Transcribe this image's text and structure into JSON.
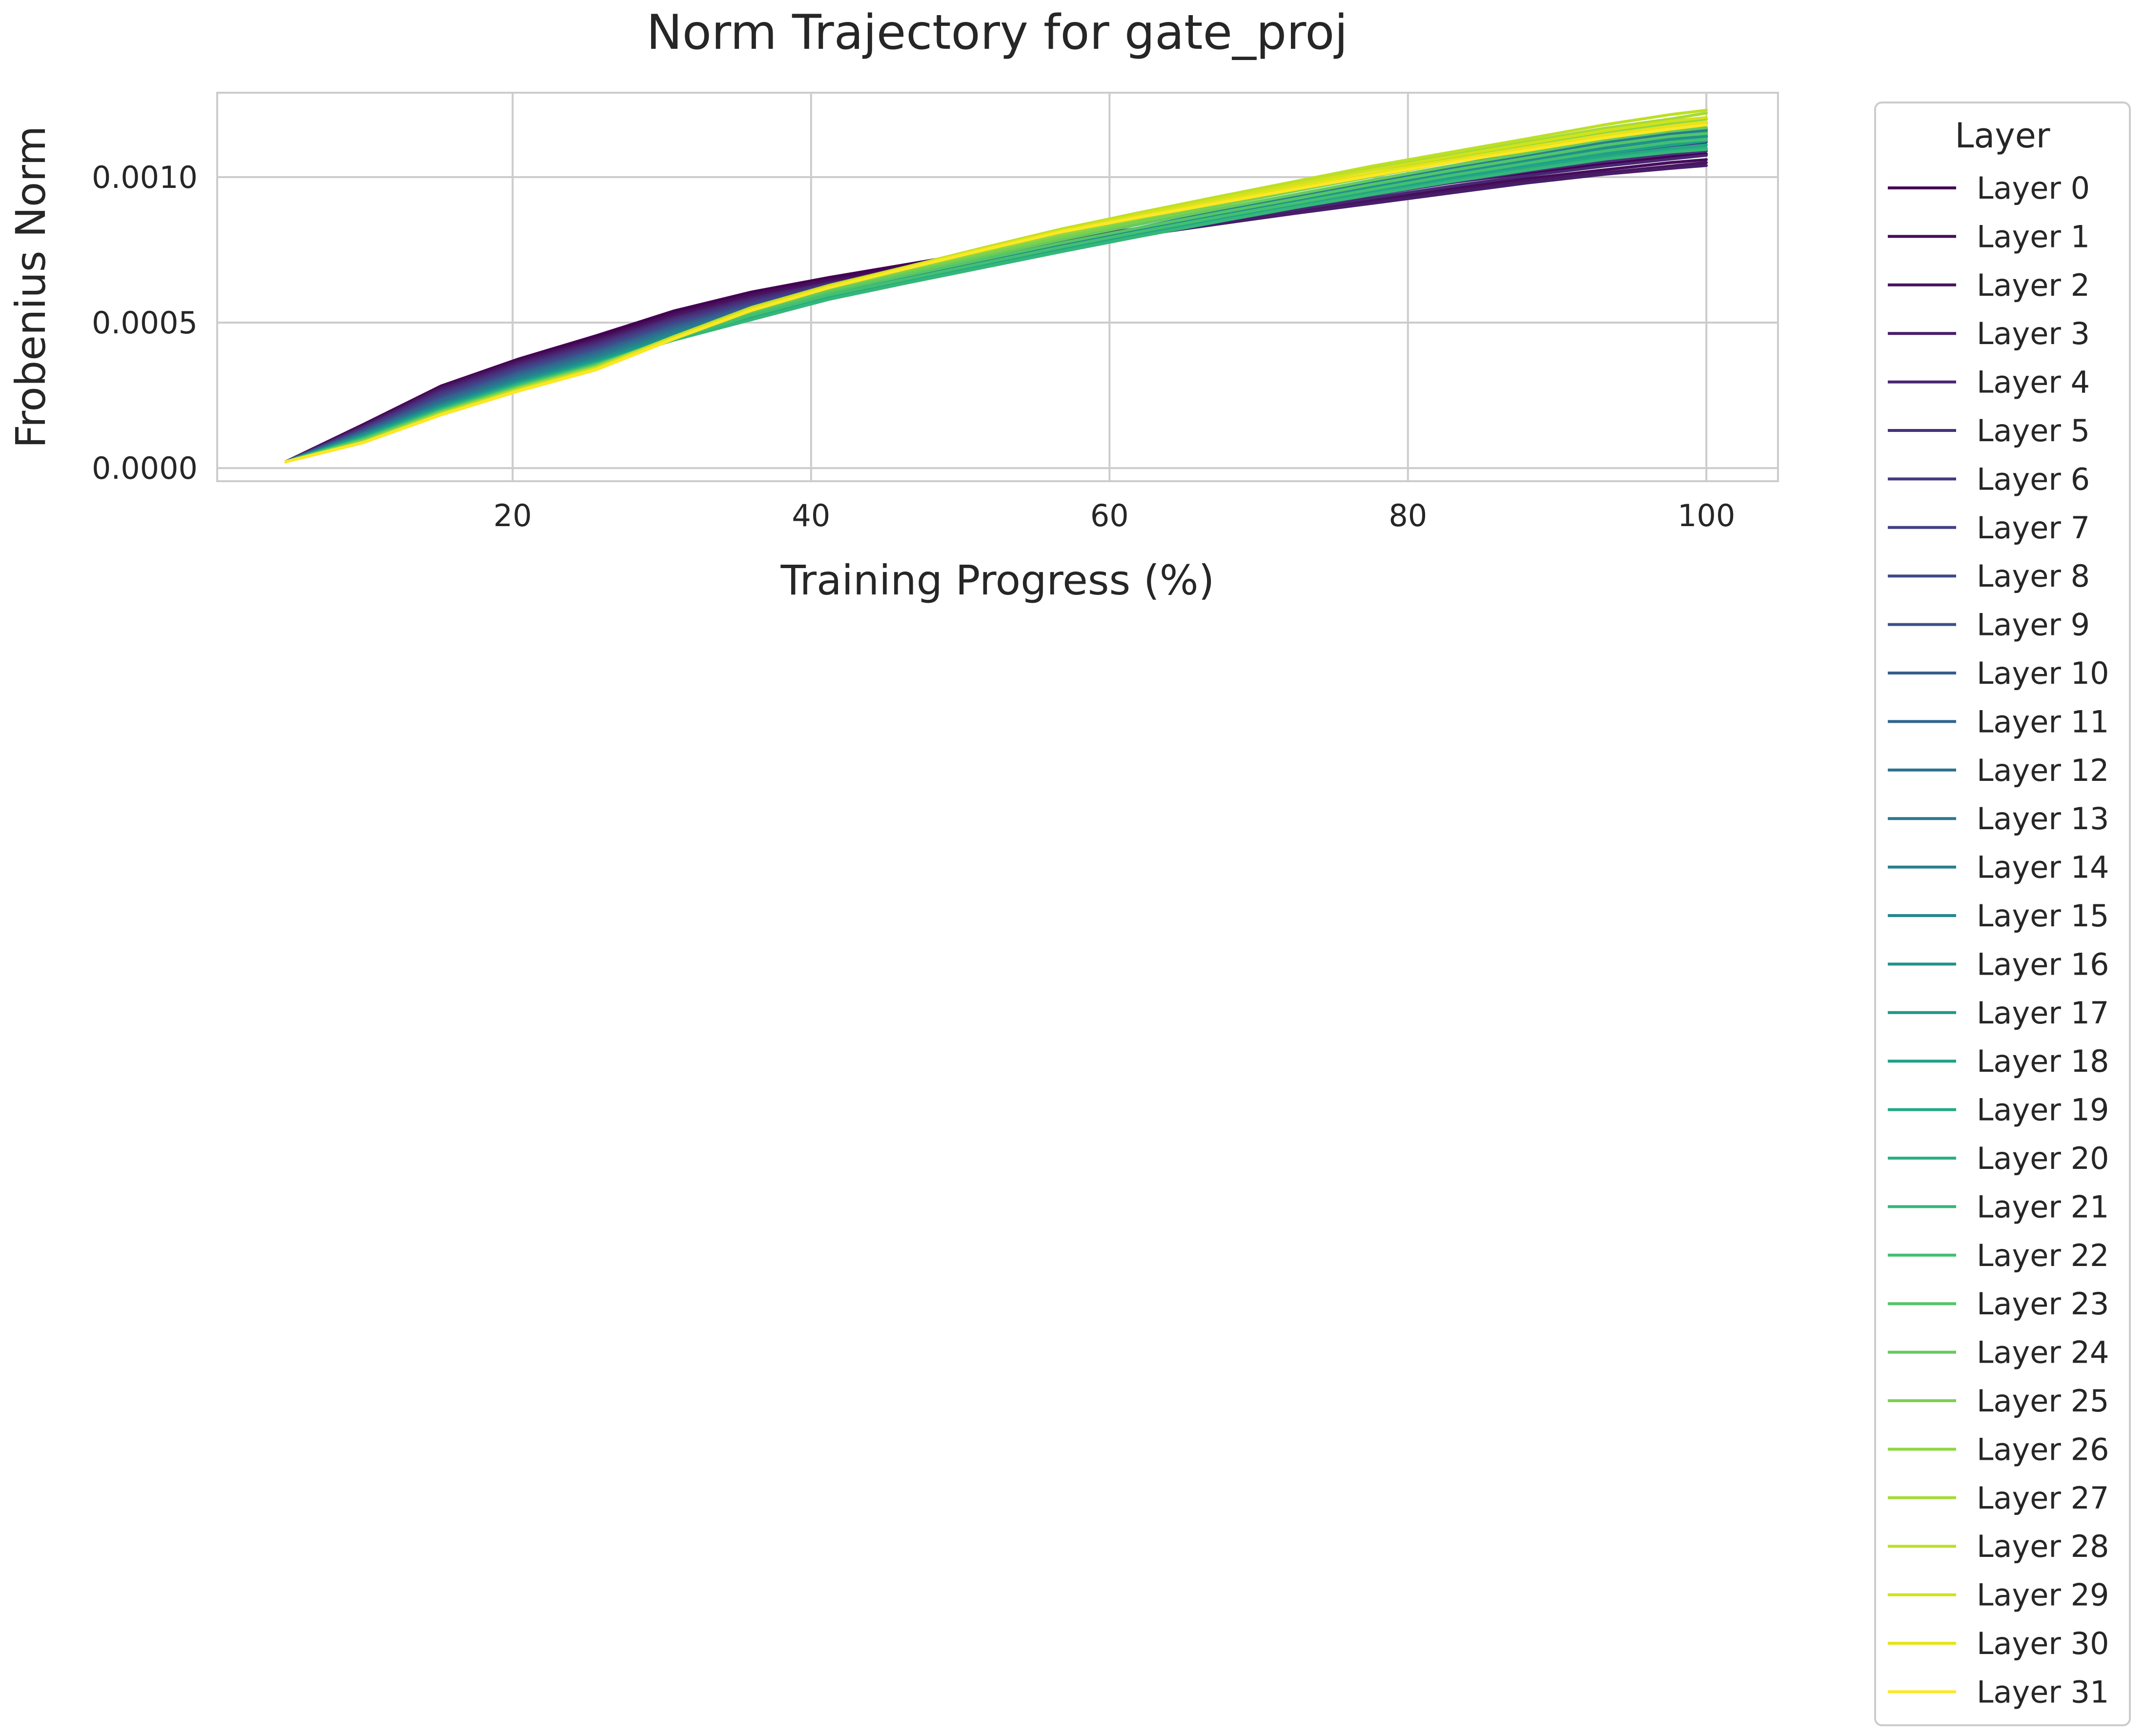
{
  "chart_data": {
    "type": "line",
    "title": "Norm Trajectory for gate_proj",
    "xlabel": "Training Progress (%)",
    "ylabel": "Frobenius Norm",
    "xlim": [
      0.2,
      104.8
    ],
    "ylim": [
      -4.5e-05,
      0.00129
    ],
    "xticks": [
      20,
      40,
      60,
      80,
      100
    ],
    "xtick_labels": [
      "20",
      "40",
      "60",
      "80",
      "100"
    ],
    "yticks": [
      0,
      0.0005,
      0.001
    ],
    "ytick_labels": [
      "0.0000",
      "0.0005",
      "0.0010"
    ],
    "grid": true,
    "legend_title": "Layer",
    "legend_position": "outside right",
    "x": [
      4.8,
      10.0,
      15.2,
      20.4,
      25.6,
      30.8,
      36.0,
      41.2,
      46.4,
      51.6,
      56.8,
      62.0,
      67.2,
      72.4,
      77.6,
      82.8,
      88.0,
      93.2,
      97.6,
      100.0
    ],
    "series": [
      {
        "name": "Layer 0",
        "color": "#440154",
        "values": [
          2.2e-05,
          0.00015,
          0.000282,
          0.000375,
          0.000455,
          0.00054,
          0.000605,
          0.000655,
          0.0007,
          0.000745,
          0.000785,
          0.000825,
          0.000865,
          0.000905,
          0.000945,
          0.00098,
          0.001015,
          0.001045,
          0.00107,
          0.00108
        ]
      },
      {
        "name": "Layer 1",
        "color": "#450c5a",
        "values": [
          2.2e-05,
          0.000148,
          0.00028,
          0.00037,
          0.000445,
          0.00053,
          0.000595,
          0.000645,
          0.000692,
          0.000735,
          0.000775,
          0.000812,
          0.000848,
          0.000885,
          0.000922,
          0.00096,
          0.000995,
          0.001025,
          0.00105,
          0.00106
        ]
      },
      {
        "name": "Layer 2",
        "color": "#47155f",
        "values": [
          2.2e-05,
          0.000145,
          0.000275,
          0.000365,
          0.00044,
          0.000525,
          0.00059,
          0.00064,
          0.000685,
          0.00073,
          0.00077,
          0.000805,
          0.000842,
          0.000878,
          0.000915,
          0.00095,
          0.000985,
          0.001015,
          0.001038,
          0.00105
        ]
      },
      {
        "name": "Layer 3",
        "color": "#481e6b",
        "values": [
          2.2e-05,
          0.000142,
          0.00027,
          0.00036,
          0.000435,
          0.000518,
          0.000585,
          0.000635,
          0.00068,
          0.000725,
          0.000765,
          0.0008,
          0.000838,
          0.000875,
          0.00091,
          0.000945,
          0.00098,
          0.00101,
          0.00103,
          0.00104
        ]
      },
      {
        "name": "Layer 4",
        "color": "#482773",
        "values": [
          2.2e-05,
          0.00014,
          0.000265,
          0.000355,
          0.00043,
          0.000515,
          0.00058,
          0.000635,
          0.00068,
          0.000725,
          0.000768,
          0.000808,
          0.000848,
          0.000888,
          0.000928,
          0.000968,
          0.001005,
          0.001038,
          0.001062,
          0.001075
        ]
      },
      {
        "name": "Layer 5",
        "color": "#47307b",
        "values": [
          2.2e-05,
          0.000138,
          0.00026,
          0.00035,
          0.000425,
          0.00051,
          0.000575,
          0.000632,
          0.000678,
          0.000724,
          0.000768,
          0.00081,
          0.000852,
          0.000895,
          0.000938,
          0.00098,
          0.00102,
          0.001055,
          0.00108,
          0.00109
        ]
      },
      {
        "name": "Layer 6",
        "color": "#453882",
        "values": [
          2.2e-05,
          0.000135,
          0.000255,
          0.000345,
          0.00042,
          0.000505,
          0.00057,
          0.000628,
          0.000676,
          0.000722,
          0.000768,
          0.000812,
          0.000856,
          0.0009,
          0.000945,
          0.000988,
          0.00103,
          0.001068,
          0.001095,
          0.00111
        ]
      },
      {
        "name": "Layer 7",
        "color": "#424086",
        "values": [
          2.2e-05,
          0.000132,
          0.00025,
          0.00034,
          0.000415,
          0.0005,
          0.000566,
          0.000625,
          0.000674,
          0.000721,
          0.000768,
          0.000814,
          0.00086,
          0.000906,
          0.000952,
          0.000996,
          0.001038,
          0.001078,
          0.001108,
          0.00112
        ]
      },
      {
        "name": "Layer 8",
        "color": "#3e4989",
        "values": [
          2.2e-05,
          0.00013,
          0.000245,
          0.000335,
          0.00041,
          0.000495,
          0.000562,
          0.000622,
          0.000672,
          0.00072,
          0.000768,
          0.000816,
          0.000864,
          0.000912,
          0.000958,
          0.001002,
          0.001046,
          0.001088,
          0.001118,
          0.00113
        ]
      },
      {
        "name": "Layer 9",
        "color": "#3a528b",
        "values": [
          2.2e-05,
          0.000128,
          0.00024,
          0.00033,
          0.000405,
          0.00049,
          0.000558,
          0.000619,
          0.00067,
          0.000719,
          0.000768,
          0.000818,
          0.000868,
          0.000918,
          0.000965,
          0.00101,
          0.001054,
          0.001098,
          0.00113,
          0.00114
        ]
      },
      {
        "name": "Layer 10",
        "color": "#355f8d",
        "values": [
          2.2e-05,
          0.000125,
          0.000235,
          0.000325,
          0.0004,
          0.000485,
          0.000554,
          0.000616,
          0.000668,
          0.000718,
          0.000768,
          0.00082,
          0.000872,
          0.000924,
          0.000972,
          0.001018,
          0.001062,
          0.001108,
          0.00114,
          0.00115
        ]
      },
      {
        "name": "Layer 11",
        "color": "#31668e",
        "values": [
          2.2e-05,
          0.000122,
          0.00023,
          0.00032,
          0.000395,
          0.00048,
          0.00055,
          0.000613,
          0.000666,
          0.000717,
          0.000768,
          0.000822,
          0.000876,
          0.00093,
          0.000978,
          0.001025,
          0.00107,
          0.001118,
          0.00115,
          0.00116
        ]
      },
      {
        "name": "Layer 12",
        "color": "#2d708e",
        "values": [
          2.2e-05,
          0.00012,
          0.000225,
          0.000315,
          0.00039,
          0.000475,
          0.000546,
          0.00061,
          0.000664,
          0.000716,
          0.000768,
          0.000824,
          0.00088,
          0.000934,
          0.000984,
          0.001032,
          0.001078,
          0.001125,
          0.001158,
          0.00117
        ]
      },
      {
        "name": "Layer 13",
        "color": "#2a788e",
        "values": [
          2.2e-05,
          0.000118,
          0.00022,
          0.00031,
          0.000385,
          0.00047,
          0.000542,
          0.000606,
          0.000662,
          0.000715,
          0.000768,
          0.000826,
          0.000882,
          0.000938,
          0.00099,
          0.001038,
          0.001085,
          0.001132,
          0.001165,
          0.00118
        ]
      },
      {
        "name": "Layer 14",
        "color": "#27808e",
        "values": [
          2.2e-05,
          0.000116,
          0.000218,
          0.000305,
          0.00038,
          0.000465,
          0.000538,
          0.000602,
          0.000658,
          0.000712,
          0.000766,
          0.000822,
          0.000878,
          0.000932,
          0.000982,
          0.00103,
          0.001076,
          0.00112,
          0.001152,
          0.001165
        ]
      },
      {
        "name": "Layer 15",
        "color": "#23888e",
        "values": [
          2.2e-05,
          0.000114,
          0.000215,
          0.0003,
          0.000375,
          0.00046,
          0.000532,
          0.000598,
          0.000654,
          0.000708,
          0.000762,
          0.000818,
          0.000872,
          0.000925,
          0.000975,
          0.001022,
          0.001066,
          0.00111,
          0.00114,
          0.001155
        ]
      },
      {
        "name": "Layer 16",
        "color": "#21918c",
        "values": [
          2.2e-05,
          0.000112,
          0.000212,
          0.000298,
          0.000372,
          0.000455,
          0.000528,
          0.000594,
          0.00065,
          0.000704,
          0.000758,
          0.000812,
          0.000866,
          0.000918,
          0.000966,
          0.001012,
          0.001056,
          0.0011,
          0.00113,
          0.001145
        ]
      },
      {
        "name": "Layer 17",
        "color": "#1f988b",
        "values": [
          2.2e-05,
          0.00011,
          0.00021,
          0.000295,
          0.000368,
          0.00045,
          0.000522,
          0.00059,
          0.000646,
          0.0007,
          0.000754,
          0.000808,
          0.00086,
          0.000912,
          0.00096,
          0.001005,
          0.001048,
          0.00109,
          0.00112,
          0.001135
        ]
      },
      {
        "name": "Layer 18",
        "color": "#1fa088",
        "values": [
          2.2e-05,
          0.000108,
          0.000208,
          0.000292,
          0.000365,
          0.000448,
          0.00052,
          0.000588,
          0.000642,
          0.000696,
          0.00075,
          0.000802,
          0.000854,
          0.000905,
          0.000952,
          0.000998,
          0.00104,
          0.001082,
          0.00111,
          0.001125
        ]
      },
      {
        "name": "Layer 19",
        "color": "#22a884",
        "values": [
          2.2e-05,
          0.000106,
          0.000205,
          0.00029,
          0.000362,
          0.000445,
          0.000516,
          0.000585,
          0.00064,
          0.000694,
          0.000748,
          0.0008,
          0.00085,
          0.0009,
          0.000946,
          0.00099,
          0.001032,
          0.001072,
          0.001098,
          0.00111
        ]
      },
      {
        "name": "Layer 20",
        "color": "#2ab07f",
        "values": [
          2.2e-05,
          0.000104,
          0.000202,
          0.000288,
          0.00036,
          0.000442,
          0.000512,
          0.000582,
          0.000638,
          0.000692,
          0.000746,
          0.000798,
          0.000848,
          0.000896,
          0.000942,
          0.000986,
          0.001026,
          0.001064,
          0.00109,
          0.0011
        ]
      },
      {
        "name": "Layer 21",
        "color": "#35b779",
        "values": [
          2.2e-05,
          0.000102,
          0.0002,
          0.000285,
          0.000358,
          0.00044,
          0.00051,
          0.00058,
          0.000636,
          0.00069,
          0.000744,
          0.000796,
          0.000846,
          0.000895,
          0.00094,
          0.000984,
          0.001024,
          0.001062,
          0.001086,
          0.001095
        ]
      },
      {
        "name": "Layer 22",
        "color": "#43bf71",
        "values": [
          2.2e-05,
          0.0001,
          0.000198,
          0.000282,
          0.000356,
          0.000445,
          0.000525,
          0.000595,
          0.00065,
          0.000705,
          0.00076,
          0.000812,
          0.000862,
          0.00091,
          0.000958,
          0.001005,
          0.001048,
          0.00109,
          0.00112,
          0.00113
        ]
      },
      {
        "name": "Layer 23",
        "color": "#52c569",
        "values": [
          2.2e-05,
          9.8e-05,
          0.000196,
          0.00028,
          0.000354,
          0.000448,
          0.000535,
          0.000605,
          0.000662,
          0.000718,
          0.000774,
          0.000826,
          0.000876,
          0.000925,
          0.000975,
          0.001022,
          0.001066,
          0.00111,
          0.00114,
          0.00115
        ]
      },
      {
        "name": "Layer 24",
        "color": "#65cb5e",
        "values": [
          2.2e-05,
          9.6e-05,
          0.000194,
          0.000278,
          0.000352,
          0.00045,
          0.00054,
          0.000612,
          0.00067,
          0.000728,
          0.000785,
          0.000838,
          0.00089,
          0.00094,
          0.00099,
          0.001038,
          0.001082,
          0.001128,
          0.001158,
          0.00117
        ]
      },
      {
        "name": "Layer 25",
        "color": "#7ad151",
        "values": [
          2.2e-05,
          9.4e-05,
          0.000192,
          0.000276,
          0.00035,
          0.00045,
          0.000545,
          0.000618,
          0.000678,
          0.000736,
          0.000794,
          0.000848,
          0.0009,
          0.000952,
          0.001002,
          0.00105,
          0.001096,
          0.001142,
          0.001172,
          0.001185
        ]
      },
      {
        "name": "Layer 26",
        "color": "#8fd744",
        "values": [
          2.2e-05,
          9.2e-05,
          0.00019,
          0.000274,
          0.000348,
          0.000452,
          0.000548,
          0.000622,
          0.000684,
          0.000744,
          0.000804,
          0.000858,
          0.00091,
          0.000962,
          0.001014,
          0.001062,
          0.001108,
          0.001155,
          0.001185,
          0.0012
        ]
      },
      {
        "name": "Layer 27",
        "color": "#a5db36",
        "values": [
          2.2e-05,
          9e-05,
          0.000188,
          0.000272,
          0.000346,
          0.000452,
          0.00055,
          0.000625,
          0.000688,
          0.000752,
          0.000814,
          0.000868,
          0.000922,
          0.000975,
          0.001028,
          0.001075,
          0.001122,
          0.001168,
          0.0012,
          0.00122
        ]
      },
      {
        "name": "Layer 28",
        "color": "#bddf26",
        "values": [
          2.2e-05,
          8.8e-05,
          0.000186,
          0.00027,
          0.000344,
          0.000452,
          0.000552,
          0.000628,
          0.000692,
          0.000758,
          0.000822,
          0.000878,
          0.000932,
          0.000985,
          0.001038,
          0.001085,
          0.001132,
          0.00118,
          0.001215,
          0.00123
        ]
      },
      {
        "name": "Layer 29",
        "color": "#d2e21b",
        "values": [
          2.2e-05,
          8.8e-05,
          0.000185,
          0.000268,
          0.000342,
          0.000448,
          0.000548,
          0.000625,
          0.00069,
          0.000755,
          0.000818,
          0.000872,
          0.000924,
          0.000975,
          0.001025,
          0.00107,
          0.001115,
          0.00116,
          0.001192,
          0.001205
        ]
      },
      {
        "name": "Layer 30",
        "color": "#e5e419",
        "values": [
          2.2e-05,
          8.8e-05,
          0.000184,
          0.000266,
          0.00034,
          0.000446,
          0.000545,
          0.000622,
          0.000688,
          0.000752,
          0.000814,
          0.000866,
          0.000916,
          0.000966,
          0.001014,
          0.001058,
          0.001102,
          0.001145,
          0.001175,
          0.00119
        ]
      },
      {
        "name": "Layer 31",
        "color": "#fde725",
        "values": [
          2.2e-05,
          8.8e-05,
          0.000183,
          0.000265,
          0.000338,
          0.000444,
          0.000542,
          0.00062,
          0.000686,
          0.00075,
          0.000812,
          0.000862,
          0.00091,
          0.000958,
          0.001005,
          0.00105,
          0.001092,
          0.001135,
          0.001165,
          0.00118
        ]
      }
    ]
  }
}
